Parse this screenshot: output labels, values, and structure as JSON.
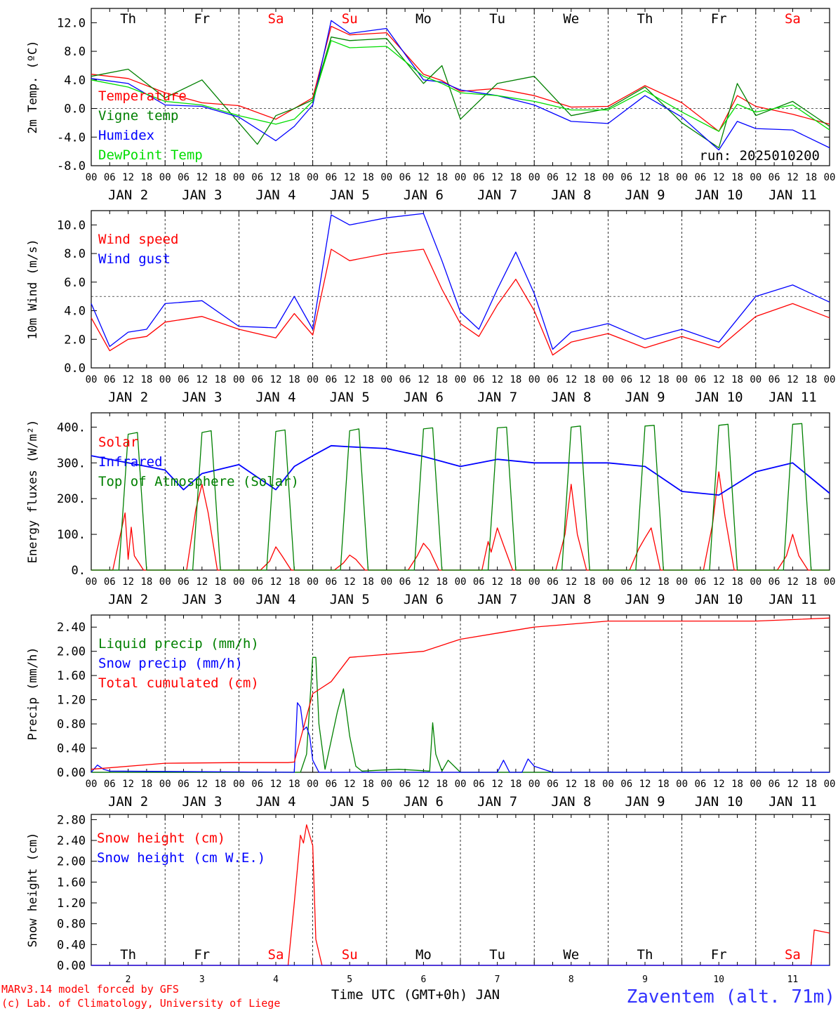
{
  "colors": {
    "red": "#ff0000",
    "green": "#008000",
    "blue": "#0000ff",
    "lightgreen": "#00dd00",
    "station": "#3333ff"
  },
  "days": [
    {
      "dow": "Th",
      "date": "JAN  2",
      "num": "2",
      "weekend": false
    },
    {
      "dow": "Fr",
      "date": "JAN  3",
      "num": "3",
      "weekend": false
    },
    {
      "dow": "Sa",
      "date": "JAN  4",
      "num": "4",
      "weekend": true
    },
    {
      "dow": "Su",
      "date": "JAN  5",
      "num": "5",
      "weekend": true
    },
    {
      "dow": "Mo",
      "date": "JAN  6",
      "num": "6",
      "weekend": false
    },
    {
      "dow": "Tu",
      "date": "JAN  7",
      "num": "7",
      "weekend": false
    },
    {
      "dow": "We",
      "date": "JAN  8",
      "num": "8",
      "weekend": false
    },
    {
      "dow": "Th",
      "date": "JAN  9",
      "num": "9",
      "weekend": false
    },
    {
      "dow": "Fr",
      "date": "JAN 10",
      "num": "10",
      "weekend": false
    },
    {
      "dow": "Sa",
      "date": "JAN 11",
      "num": "11",
      "weekend": true
    }
  ],
  "hour_ticks": [
    "00",
    "06",
    "12",
    "18"
  ],
  "footer": {
    "credit1": "MARv3.14 model forced by GFS",
    "credit2": "(c) Lab. of Climatology, University of Liege",
    "xlabel": "Time UTC (GMT+0h) JAN",
    "station": "Zaventem (alt. 71m)"
  },
  "chart_data": [
    {
      "type": "line",
      "ylabel": "2m Temp. (ºC)",
      "ylim": [
        -8,
        14
      ],
      "yticks": [
        "12.0",
        "8.0",
        "4.0",
        "0.0",
        "-4.0",
        "-8.0"
      ],
      "ytick_values": [
        12,
        8,
        4,
        0,
        -4,
        -8
      ],
      "ref_line": 0,
      "annotation": "run: 2025010200",
      "series": [
        {
          "name": "Temperature",
          "color": "red",
          "x": [
            0,
            12,
            24,
            36,
            48,
            60,
            66,
            72,
            78,
            84,
            96,
            108,
            114,
            120,
            132,
            144,
            156,
            168,
            180,
            192,
            204,
            210,
            216,
            228,
            240
          ],
          "y": [
            4.8,
            4.2,
            2.2,
            0.8,
            0.4,
            -1.5,
            0,
            1.5,
            11.5,
            10.3,
            10.6,
            4.8,
            3.9,
            2.4,
            2.8,
            1.8,
            0.2,
            0.3,
            3.2,
            0.8,
            -3.2,
            1.8,
            0.3,
            -0.8,
            -2.2
          ]
        },
        {
          "name": "Vigne temp",
          "color": "green",
          "x": [
            0,
            12,
            24,
            36,
            48,
            54,
            60,
            66,
            72,
            78,
            84,
            96,
            108,
            114,
            120,
            132,
            144,
            156,
            168,
            180,
            192,
            204,
            210,
            216,
            228,
            240
          ],
          "y": [
            4.5,
            5.5,
            1.5,
            4,
            -2,
            -5,
            -1,
            0,
            1.2,
            10,
            9.5,
            9.8,
            3.5,
            6,
            -1.5,
            3.5,
            4.5,
            -1,
            0,
            3,
            -2,
            -5.5,
            3.5,
            -1,
            1,
            -2.5
          ]
        },
        {
          "name": "Humidex",
          "color": "blue",
          "x": [
            0,
            12,
            24,
            36,
            48,
            60,
            66,
            72,
            78,
            84,
            96,
            108,
            114,
            120,
            132,
            144,
            156,
            168,
            180,
            192,
            204,
            210,
            216,
            228,
            240
          ],
          "y": [
            4.2,
            3.5,
            0.5,
            0.3,
            -1.2,
            -4.5,
            -2.5,
            0.5,
            12.3,
            10.5,
            11.2,
            4.0,
            3.7,
            2.6,
            1.8,
            0.5,
            -1.8,
            -2.1,
            1.8,
            -1.2,
            -5.8,
            -1.8,
            -2.8,
            -3.0,
            -5.5
          ]
        },
        {
          "name": "DewPoint Temp",
          "color": "lightgreen",
          "x": [
            0,
            12,
            24,
            36,
            48,
            60,
            66,
            72,
            78,
            84,
            96,
            108,
            114,
            120,
            132,
            144,
            156,
            168,
            180,
            192,
            204,
            210,
            216,
            228,
            240
          ],
          "y": [
            4.0,
            3.0,
            1.0,
            0.5,
            -1.0,
            -2.2,
            -1.5,
            1.0,
            9.5,
            8.5,
            8.7,
            4.5,
            3.5,
            2.2,
            1.8,
            1.0,
            -0.2,
            -0.2,
            2.5,
            -0.5,
            -3.2,
            0.6,
            -0.5,
            0.5,
            -3.0
          ]
        }
      ]
    },
    {
      "type": "line",
      "ylabel": "10m Wind (m/s)",
      "ylim": [
        0,
        11
      ],
      "yticks": [
        "10.0",
        "8.0",
        "6.0",
        "4.0",
        "2.0",
        "0.0"
      ],
      "ytick_values": [
        10,
        8,
        6,
        4,
        2,
        0
      ],
      "ref_line": 5,
      "series": [
        {
          "name": "Wind speed",
          "color": "red",
          "x": [
            0,
            6,
            12,
            18,
            24,
            36,
            48,
            60,
            66,
            72,
            78,
            84,
            96,
            108,
            114,
            120,
            126,
            132,
            138,
            144,
            150,
            156,
            168,
            180,
            192,
            204,
            216,
            228,
            240
          ],
          "y": [
            3.5,
            1.2,
            2,
            2.2,
            3.2,
            3.6,
            2.7,
            2.1,
            3.8,
            2.3,
            8.3,
            7.5,
            8.0,
            8.3,
            5.5,
            3.1,
            2.2,
            4.4,
            6.2,
            4.0,
            0.9,
            1.8,
            2.4,
            1.4,
            2.2,
            1.4,
            3.6,
            4.5,
            3.5
          ]
        },
        {
          "name": "Wind gust",
          "color": "blue",
          "x": [
            0,
            6,
            12,
            18,
            24,
            36,
            48,
            60,
            66,
            72,
            78,
            84,
            96,
            108,
            114,
            120,
            126,
            132,
            138,
            144,
            150,
            156,
            168,
            180,
            192,
            204,
            216,
            228,
            240
          ],
          "y": [
            4.5,
            1.5,
            2.5,
            2.7,
            4.5,
            4.7,
            2.9,
            2.8,
            5,
            2.7,
            10.7,
            10,
            10.5,
            10.8,
            7.5,
            3.9,
            2.7,
            5.5,
            8.1,
            5.2,
            1.3,
            2.5,
            3.1,
            2.0,
            2.7,
            1.8,
            5.0,
            5.8,
            4.6
          ]
        }
      ]
    },
    {
      "type": "line",
      "ylabel": "Energy fluxes (W/m²)",
      "ylim": [
        0,
        440
      ],
      "yticks": [
        "400.",
        "300.",
        "200.",
        "100.",
        "0."
      ],
      "ytick_values": [
        400,
        300,
        200,
        100,
        0
      ],
      "series": [
        {
          "name": "Solar",
          "color": "red",
          "x": [
            0,
            7,
            11,
            12,
            13,
            14,
            17,
            24,
            31,
            34,
            36,
            38,
            41,
            48,
            55,
            58,
            60,
            62,
            65,
            72,
            79,
            82,
            84,
            86,
            89,
            96,
            103,
            106,
            108,
            110,
            113,
            120,
            127,
            129,
            130,
            132,
            134,
            137,
            144,
            151,
            154,
            156,
            158,
            161,
            168,
            175,
            178,
            180,
            182,
            185,
            192,
            199,
            202,
            204,
            206,
            209,
            216,
            223,
            226,
            228,
            230,
            233,
            240
          ],
          "y": [
            0,
            0,
            160,
            30,
            120,
            40,
            0,
            0,
            0,
            170,
            240,
            160,
            0,
            0,
            0,
            25,
            65,
            40,
            0,
            0,
            0,
            20,
            42,
            30,
            0,
            0,
            0,
            40,
            75,
            55,
            0,
            0,
            0,
            80,
            50,
            118,
            70,
            0,
            0,
            0,
            100,
            240,
            100,
            0,
            0,
            0,
            60,
            90,
            118,
            0,
            0,
            0,
            130,
            275,
            150,
            0,
            0,
            0,
            40,
            100,
            40,
            0,
            0
          ]
        },
        {
          "name": "Infrared",
          "color": "blue",
          "x": [
            0,
            12,
            24,
            30,
            36,
            48,
            60,
            66,
            72,
            78,
            84,
            96,
            108,
            120,
            132,
            144,
            156,
            168,
            180,
            192,
            204,
            216,
            228,
            240
          ],
          "y": [
            320,
            300,
            280,
            225,
            270,
            295,
            225,
            290,
            320,
            348,
            345,
            340,
            318,
            290,
            310,
            300,
            300,
            300,
            290,
            220,
            210,
            275,
            300,
            215
          ]
        },
        {
          "name": "Top of Atmosphere (Solar)",
          "color": "green",
          "x": [
            0,
            9,
            12,
            15,
            18,
            24,
            33,
            36,
            39,
            42,
            48,
            57,
            60,
            63,
            66,
            72,
            81,
            84,
            87,
            90,
            96,
            105,
            108,
            111,
            114,
            120,
            129,
            132,
            135,
            138,
            144,
            153,
            156,
            159,
            162,
            168,
            177,
            180,
            183,
            186,
            192,
            201,
            204,
            207,
            210,
            216,
            225,
            228,
            231,
            234,
            240
          ],
          "y": [
            0,
            0,
            380,
            385,
            0,
            0,
            0,
            385,
            390,
            0,
            0,
            0,
            388,
            392,
            0,
            0,
            0,
            390,
            395,
            0,
            0,
            0,
            395,
            398,
            0,
            0,
            0,
            398,
            400,
            0,
            0,
            0,
            400,
            403,
            0,
            0,
            0,
            403,
            405,
            0,
            0,
            0,
            405,
            408,
            0,
            0,
            0,
            408,
            410,
            0,
            0
          ]
        }
      ]
    },
    {
      "type": "line",
      "ylabel": "Precip (mm/h)",
      "ylim": [
        0,
        2.6
      ],
      "yticks": [
        "2.40",
        "2.00",
        "1.60",
        "1.20",
        "0.80",
        "0.40",
        "0.00"
      ],
      "ytick_values": [
        2.4,
        2.0,
        1.6,
        1.2,
        0.8,
        0.4,
        0.0
      ],
      "series": [
        {
          "name": "Liquid precip (mm/h)",
          "color": "green",
          "x": [
            0,
            68,
            70,
            72,
            73,
            74,
            76,
            80,
            82,
            84,
            86,
            88,
            100,
            110,
            111,
            112,
            114,
            116,
            120,
            240
          ],
          "y": [
            0,
            0,
            0.3,
            1.9,
            1.9,
            0.8,
            0.05,
            1.0,
            1.38,
            0.6,
            0.1,
            0.02,
            0.05,
            0.02,
            0.82,
            0.3,
            0.02,
            0.2,
            0,
            0
          ]
        },
        {
          "name": "Snow precip (mm/h)",
          "color": "blue",
          "x": [
            0,
            2,
            4,
            6,
            66,
            67,
            68,
            69,
            70,
            71,
            72,
            74,
            76,
            132,
            134,
            136,
            140,
            142,
            144,
            150,
            240
          ],
          "y": [
            0,
            0.12,
            0.05,
            0.02,
            0,
            1.15,
            1.08,
            0.7,
            0.75,
            0.6,
            0.2,
            0,
            0,
            0,
            0.2,
            0,
            0,
            0.22,
            0.1,
            0,
            0
          ]
        },
        {
          "name": "Total cumulated (cm)",
          "color": "red",
          "x": [
            0,
            24,
            48,
            64,
            66,
            72,
            78,
            84,
            108,
            120,
            132,
            144,
            168,
            192,
            216,
            240
          ],
          "y": [
            0.05,
            0.15,
            0.16,
            0.16,
            0.17,
            1.3,
            1.5,
            1.9,
            2.0,
            2.2,
            2.3,
            2.4,
            2.5,
            2.5,
            2.5,
            2.55
          ]
        }
      ]
    },
    {
      "type": "line",
      "ylabel": "Snow height (cm)",
      "ylim": [
        0,
        2.9
      ],
      "yticks": [
        "2.80",
        "2.40",
        "2.00",
        "1.60",
        "1.20",
        "0.80",
        "0.40",
        "0.00"
      ],
      "ytick_values": [
        2.8,
        2.4,
        2.0,
        1.6,
        1.2,
        0.8,
        0.4,
        0.0
      ],
      "series": [
        {
          "name": "Snow height (cm)",
          "color": "red",
          "x": [
            0,
            64,
            66,
            68,
            69,
            70,
            72,
            73,
            75,
            234,
            235,
            240
          ],
          "y": [
            0,
            0,
            1.2,
            2.5,
            2.35,
            2.7,
            2.3,
            0.5,
            0,
            0,
            0.68,
            0.62
          ]
        },
        {
          "name": "Snow height (cm W.E.)",
          "color": "blue",
          "x": [
            0,
            240
          ],
          "y": [
            0,
            0
          ]
        }
      ]
    }
  ]
}
